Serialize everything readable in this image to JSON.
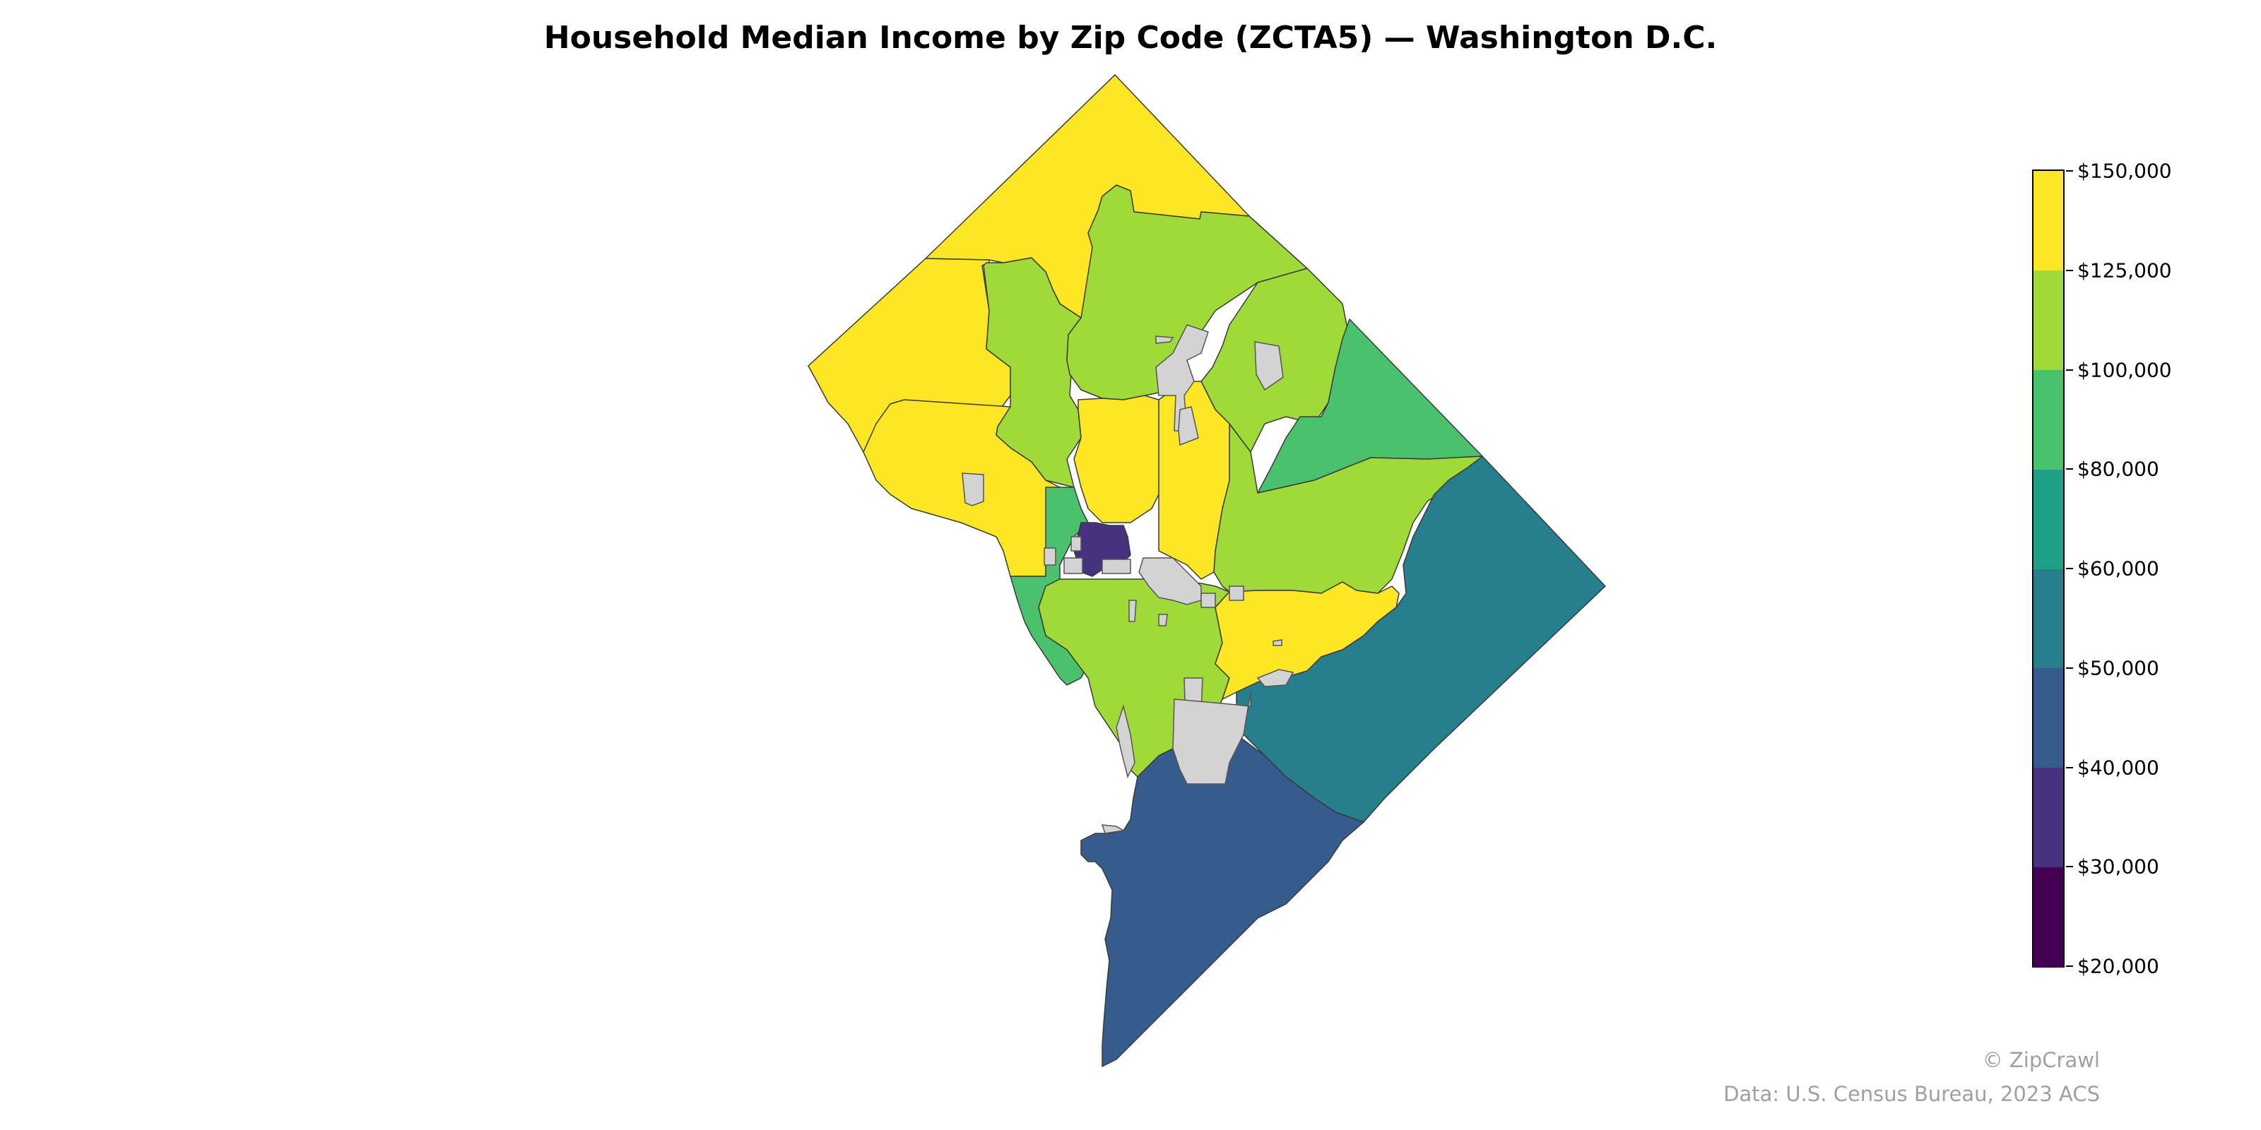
{
  "title": "Household Median Income by Zip Code (ZCTA5) — Washington D.C.",
  "legend": {
    "ticks": [
      "$20,000",
      "$30,000",
      "$40,000",
      "$50,000",
      "$60,000",
      "$80,000",
      "$100,000",
      "$125,000",
      "$150,000"
    ],
    "bins": [
      {
        "range": "$20,000–$30,000",
        "color": "#440154"
      },
      {
        "range": "$30,000–$40,000",
        "color": "#46327e"
      },
      {
        "range": "$40,000–$50,000",
        "color": "#365c8d"
      },
      {
        "range": "$50,000–$60,000",
        "color": "#277f8e"
      },
      {
        "range": "$60,000–$80,000",
        "color": "#1fa187"
      },
      {
        "range": "$80,000–$100,000",
        "color": "#4ac16d"
      },
      {
        "range": "$100,000–$125,000",
        "color": "#a0da39"
      },
      {
        "range": "$125,000–$150,000",
        "color": "#fde725"
      }
    ],
    "no_data_color": "#d3d3d3"
  },
  "credits": {
    "brand": "© ZipCrawl",
    "source": "Data: U.S. Census Bureau, 2023 ACS"
  },
  "regions": [
    {
      "id": "northwest-upper",
      "bin": "$125,000–$150,000",
      "color": "#fde725"
    },
    {
      "id": "northwest-mid",
      "bin": "$125,000–$150,000",
      "color": "#fde725"
    },
    {
      "id": "northwest-lower",
      "bin": "$125,000–$150,000",
      "color": "#fde725"
    },
    {
      "id": "rock-creek-west",
      "bin": "$100,000–$125,000",
      "color": "#a0da39"
    },
    {
      "id": "north-central",
      "bin": "$100,000–$125,000",
      "color": "#a0da39"
    },
    {
      "id": "northeast-upper",
      "bin": "$100,000–$125,000",
      "color": "#a0da39"
    },
    {
      "id": "northeast-green",
      "bin": "$80,000–$100,000",
      "color": "#4ac16d"
    },
    {
      "id": "east-central",
      "bin": "$100,000–$125,000",
      "color": "#a0da39"
    },
    {
      "id": "central-yellow-west",
      "bin": "$125,000–$150,000",
      "color": "#fde725"
    },
    {
      "id": "central-yellow-east",
      "bin": "$125,000–$150,000",
      "color": "#fde725"
    },
    {
      "id": "west-end",
      "bin": "$80,000–$100,000",
      "color": "#4ac16d"
    },
    {
      "id": "downtown",
      "bin": "$30,000–$40,000",
      "color": "#46327e"
    },
    {
      "id": "southwest-central",
      "bin": "$100,000–$125,000",
      "color": "#a0da39"
    },
    {
      "id": "capitol-hill-east",
      "bin": "$125,000–$150,000",
      "color": "#fde725"
    },
    {
      "id": "southeast-east",
      "bin": "$50,000–$60,000",
      "color": "#277f8e"
    },
    {
      "id": "far-southeast",
      "bin": "$40,000–$50,000",
      "color": "#365c8d"
    }
  ]
}
